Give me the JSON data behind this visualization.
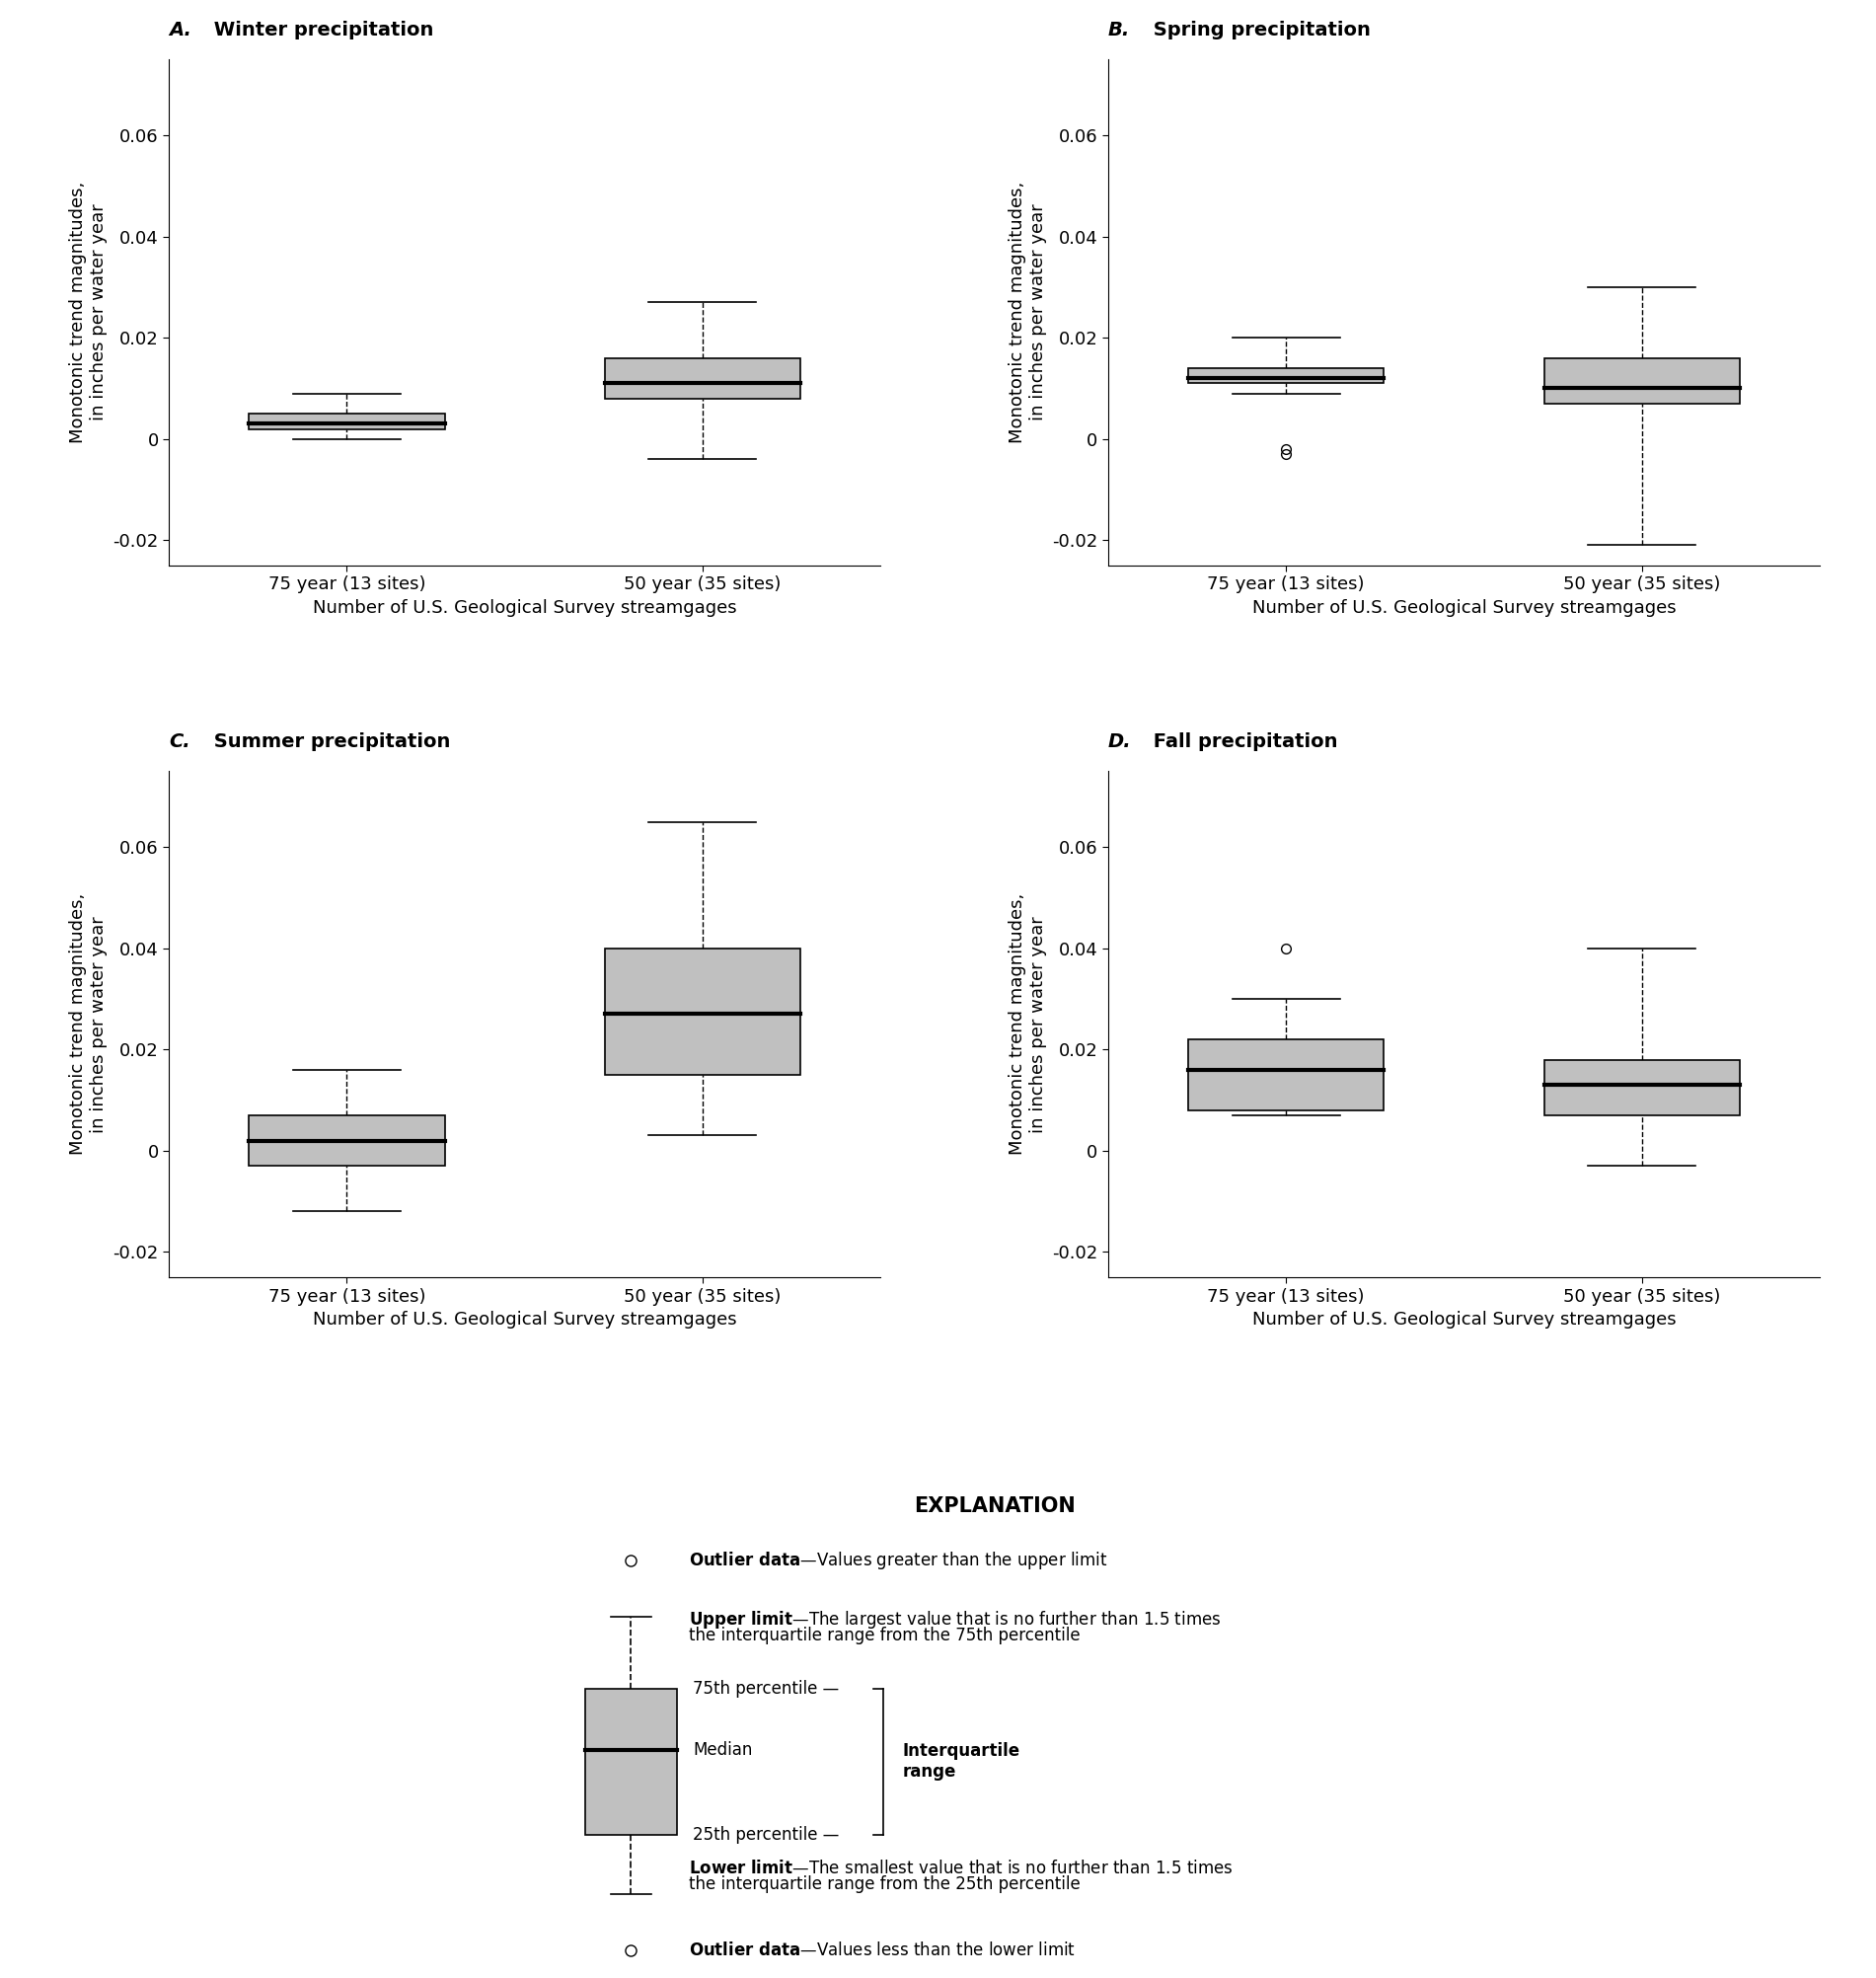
{
  "panels": [
    {
      "title_letter": "A.",
      "title_rest": " Winter precipitation",
      "categories": [
        "75 year (13 sites)",
        "50 year (35 sites)"
      ],
      "q1": [
        0.002,
        0.008
      ],
      "median": [
        0.003,
        0.011
      ],
      "q3": [
        0.005,
        0.016
      ],
      "whisker_low": [
        0.0,
        -0.004
      ],
      "whisker_high": [
        0.009,
        0.027
      ],
      "outliers": [
        [],
        []
      ],
      "ylim": [
        -0.025,
        0.075
      ],
      "yticks": [
        -0.02,
        0.0,
        0.02,
        0.04,
        0.06
      ]
    },
    {
      "title_letter": "B.",
      "title_rest": " Spring precipitation",
      "categories": [
        "75 year (13 sites)",
        "50 year (35 sites)"
      ],
      "q1": [
        0.011,
        0.007
      ],
      "median": [
        0.012,
        0.01
      ],
      "q3": [
        0.014,
        0.016
      ],
      "whisker_low": [
        0.009,
        -0.021
      ],
      "whisker_high": [
        0.02,
        0.03
      ],
      "outliers": [
        [
          -0.002,
          -0.003
        ],
        []
      ],
      "ylim": [
        -0.025,
        0.075
      ],
      "yticks": [
        -0.02,
        0.0,
        0.02,
        0.04,
        0.06
      ]
    },
    {
      "title_letter": "C.",
      "title_rest": " Summer precipitation",
      "categories": [
        "75 year (13 sites)",
        "50 year (35 sites)"
      ],
      "q1": [
        -0.003,
        0.015
      ],
      "median": [
        0.002,
        0.027
      ],
      "q3": [
        0.007,
        0.04
      ],
      "whisker_low": [
        -0.012,
        0.003
      ],
      "whisker_high": [
        0.016,
        0.065
      ],
      "outliers": [
        [],
        []
      ],
      "ylim": [
        -0.025,
        0.075
      ],
      "yticks": [
        -0.02,
        0.0,
        0.02,
        0.04,
        0.06
      ]
    },
    {
      "title_letter": "D.",
      "title_rest": " Fall precipitation",
      "categories": [
        "75 year (13 sites)",
        "50 year (35 sites)"
      ],
      "q1": [
        0.008,
        0.007
      ],
      "median": [
        0.016,
        0.013
      ],
      "q3": [
        0.022,
        0.018
      ],
      "whisker_low": [
        0.007,
        -0.003
      ],
      "whisker_high": [
        0.03,
        0.04
      ],
      "outliers": [
        [
          0.04
        ],
        []
      ],
      "ylim": [
        -0.025,
        0.075
      ],
      "yticks": [
        -0.02,
        0.0,
        0.02,
        0.04,
        0.06
      ]
    }
  ],
  "ylabel": "Monotonic trend magnitudes,\nin inches per water year",
  "xlabel": "Number of U.S. Geological Survey streamgages",
  "box_color": "#c0c0c0",
  "box_edgecolor": "#000000",
  "median_color": "#000000",
  "whisker_color": "#000000",
  "explanation_title": "EXPLANATION"
}
